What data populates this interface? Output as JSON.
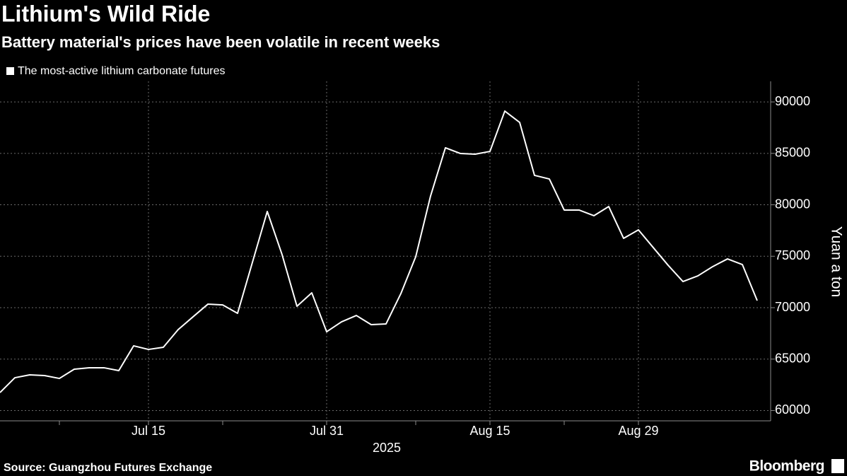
{
  "chart_data": {
    "type": "line",
    "title": "Lithium's Wild Ride",
    "subtitle": "Battery material's prices have been volatile in recent weeks",
    "xlabel": "2025",
    "ylabel": "Yuan a ton",
    "source": "Source: Guangzhou Futures Exchange",
    "brand": "Bloomberg",
    "categories": [
      null,
      null,
      null,
      null,
      null,
      null,
      null,
      null,
      null,
      null,
      "Jul 15",
      null,
      null,
      null,
      null,
      null,
      null,
      null,
      null,
      null,
      null,
      null,
      "Jul 31",
      null,
      null,
      null,
      null,
      null,
      null,
      null,
      null,
      null,
      null,
      "Aug 15",
      null,
      null,
      null,
      null,
      null,
      null,
      null,
      null,
      null,
      "Aug 29",
      null,
      null,
      null,
      null,
      null,
      null,
      null,
      null
    ],
    "series": [
      {
        "name": "The most-active lithium carbonate futures",
        "color": "#ffffff",
        "values": [
          61750,
          63190,
          63470,
          63400,
          63120,
          64020,
          64160,
          64160,
          63880,
          66290,
          65940,
          66150,
          67870,
          69110,
          70340,
          70270,
          69450,
          74400,
          79350,
          75150,
          70140,
          71440,
          67660,
          68620,
          69240,
          68350,
          68420,
          71370,
          74950,
          80860,
          85540,
          84990,
          84920,
          85190,
          89110,
          88010,
          82860,
          82510,
          79490,
          79490,
          78940,
          79830,
          76740,
          77560,
          75840,
          74120,
          72540,
          73090,
          73990,
          74740,
          74190,
          70690
        ]
      }
    ],
    "ylim": [
      59000,
      92000
    ],
    "yticks": [
      60000,
      65000,
      70000,
      75000,
      80000,
      85000,
      90000
    ],
    "grid": true,
    "legend": "top-left"
  }
}
